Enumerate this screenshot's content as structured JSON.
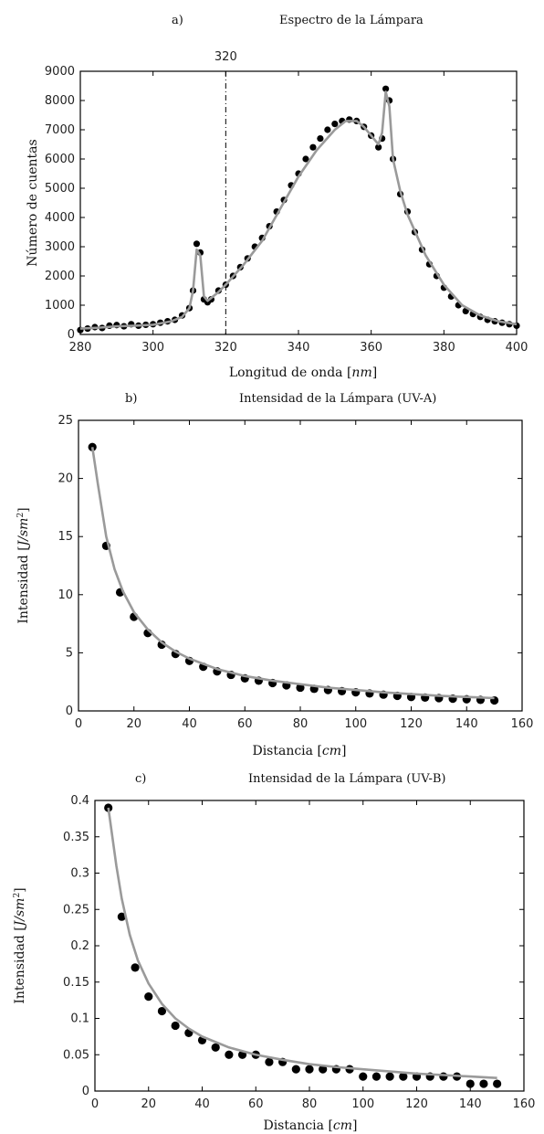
{
  "chart_data": [
    {
      "type": "scatter",
      "panel": "a)",
      "title": "Espectro de la Lámpara",
      "xlabel": "Longitud de onda [nm]",
      "ylabel": "Número de cuentas",
      "xlim": [
        280,
        400
      ],
      "ylim": [
        0,
        9000
      ],
      "xticks": [
        280,
        300,
        320,
        340,
        360,
        380,
        400
      ],
      "yticks": [
        0,
        1000,
        2000,
        3000,
        4000,
        5000,
        6000,
        7000,
        8000,
        9000
      ],
      "vline": {
        "x": 320,
        "label": "320",
        "style": "dash-dot"
      },
      "series": [
        {
          "color": "#000000",
          "marker": "circle",
          "x": [
            280,
            282,
            284,
            286,
            288,
            290,
            292,
            294,
            296,
            298,
            300,
            302,
            304,
            306,
            308,
            310,
            311,
            312,
            313,
            314,
            315,
            316,
            318,
            320,
            322,
            324,
            326,
            328,
            330,
            332,
            334,
            336,
            338,
            340,
            342,
            344,
            346,
            348,
            350,
            352,
            354,
            356,
            358,
            360,
            362,
            363,
            364,
            365,
            366,
            368,
            370,
            372,
            374,
            376,
            378,
            380,
            382,
            384,
            386,
            388,
            390,
            392,
            394,
            396,
            398,
            400
          ],
          "y": [
            150,
            200,
            250,
            220,
            300,
            320,
            280,
            350,
            300,
            330,
            350,
            400,
            450,
            500,
            650,
            900,
            1500,
            3100,
            2800,
            1200,
            1100,
            1200,
            1500,
            1700,
            2000,
            2300,
            2600,
            3000,
            3300,
            3700,
            4200,
            4600,
            5100,
            5500,
            6000,
            6400,
            6700,
            7000,
            7200,
            7300,
            7350,
            7300,
            7100,
            6800,
            6400,
            6700,
            8400,
            8000,
            6000,
            4800,
            4200,
            3500,
            2900,
            2400,
            2000,
            1600,
            1300,
            1000,
            800,
            700,
            600,
            500,
            450,
            400,
            350,
            300
          ]
        },
        {
          "color": "#9a9a9a",
          "marker": "line",
          "x": [
            280,
            285,
            290,
            295,
            300,
            305,
            308,
            310,
            311,
            312,
            313,
            314,
            315,
            318,
            320,
            325,
            330,
            335,
            340,
            345,
            350,
            353,
            356,
            358,
            360,
            362,
            363,
            364,
            365,
            366,
            368,
            370,
            375,
            380,
            385,
            390,
            395,
            400
          ],
          "y": [
            200,
            230,
            280,
            300,
            330,
            450,
            600,
            900,
            1500,
            2900,
            2700,
            1300,
            1150,
            1450,
            1700,
            2400,
            3200,
            4300,
            5400,
            6300,
            7000,
            7300,
            7300,
            7100,
            6800,
            6500,
            6900,
            8300,
            7800,
            6000,
            4900,
            4100,
            2700,
            1700,
            1000,
            650,
            450,
            350
          ]
        }
      ]
    },
    {
      "type": "scatter",
      "panel": "b)",
      "title": "Intensidad de la Lámpara (UV-A)",
      "xlabel": "Distancia [cm]",
      "ylabel": "Intensidad [J/sm²]",
      "xlim": [
        0,
        160
      ],
      "ylim": [
        0,
        25
      ],
      "xticks": [
        0,
        20,
        40,
        60,
        80,
        100,
        120,
        140,
        160
      ],
      "yticks": [
        0,
        5,
        10,
        15,
        20,
        25
      ],
      "series": [
        {
          "color": "#000000",
          "marker": "circle",
          "x": [
            5,
            10,
            15,
            20,
            25,
            30,
            35,
            40,
            45,
            50,
            55,
            60,
            65,
            70,
            75,
            80,
            85,
            90,
            95,
            100,
            105,
            110,
            115,
            120,
            125,
            130,
            135,
            140,
            145,
            150
          ],
          "y": [
            22.7,
            14.2,
            10.2,
            8.1,
            6.7,
            5.7,
            4.9,
            4.3,
            3.8,
            3.4,
            3.1,
            2.8,
            2.6,
            2.4,
            2.2,
            2.0,
            1.9,
            1.8,
            1.7,
            1.6,
            1.5,
            1.4,
            1.3,
            1.2,
            1.15,
            1.1,
            1.05,
            1.0,
            0.95,
            0.9
          ]
        },
        {
          "color": "#9a9a9a",
          "marker": "line",
          "x": [
            5,
            7,
            10,
            13,
            16,
            20,
            25,
            30,
            35,
            40,
            50,
            60,
            70,
            80,
            90,
            100,
            110,
            120,
            130,
            140,
            150
          ],
          "y": [
            22.7,
            19.5,
            15.0,
            12.2,
            10.3,
            8.5,
            7.0,
            5.9,
            5.1,
            4.5,
            3.6,
            3.0,
            2.6,
            2.3,
            2.0,
            1.8,
            1.6,
            1.45,
            1.3,
            1.2,
            1.1
          ]
        }
      ]
    },
    {
      "type": "scatter",
      "panel": "c)",
      "title": "Intensidad de la Lámpara (UV-B)",
      "xlabel": "Distancia [cm]",
      "ylabel": "Intensidad [J/sm²]",
      "xlim": [
        0,
        160
      ],
      "ylim": [
        0,
        0.4
      ],
      "xticks": [
        0,
        20,
        40,
        60,
        80,
        100,
        120,
        140,
        160
      ],
      "yticks": [
        0,
        0.05,
        0.1,
        0.15,
        0.2,
        0.25,
        0.3,
        0.35,
        0.4
      ],
      "series": [
        {
          "color": "#000000",
          "marker": "circle",
          "x": [
            5,
            10,
            15,
            20,
            25,
            30,
            35,
            40,
            45,
            50,
            55,
            60,
            65,
            70,
            75,
            80,
            85,
            90,
            95,
            100,
            105,
            110,
            115,
            120,
            125,
            130,
            135,
            140,
            145,
            150
          ],
          "y": [
            0.39,
            0.24,
            0.17,
            0.13,
            0.11,
            0.09,
            0.08,
            0.07,
            0.06,
            0.05,
            0.05,
            0.05,
            0.04,
            0.04,
            0.03,
            0.03,
            0.03,
            0.03,
            0.03,
            0.02,
            0.02,
            0.02,
            0.02,
            0.02,
            0.02,
            0.02,
            0.02,
            0.01,
            0.01,
            0.01
          ]
        },
        {
          "color": "#9a9a9a",
          "marker": "line",
          "x": [
            5,
            8,
            10,
            13,
            16,
            20,
            25,
            30,
            35,
            40,
            50,
            60,
            70,
            80,
            90,
            100,
            110,
            120,
            130,
            140,
            150
          ],
          "y": [
            0.39,
            0.31,
            0.265,
            0.215,
            0.18,
            0.148,
            0.12,
            0.1,
            0.086,
            0.075,
            0.06,
            0.05,
            0.043,
            0.037,
            0.033,
            0.03,
            0.027,
            0.024,
            0.022,
            0.02,
            0.018
          ]
        }
      ]
    }
  ],
  "labels": {
    "nm_unit": "nm",
    "cm_unit": "cm",
    "j_unit": "J/sm",
    "sq": "2"
  }
}
